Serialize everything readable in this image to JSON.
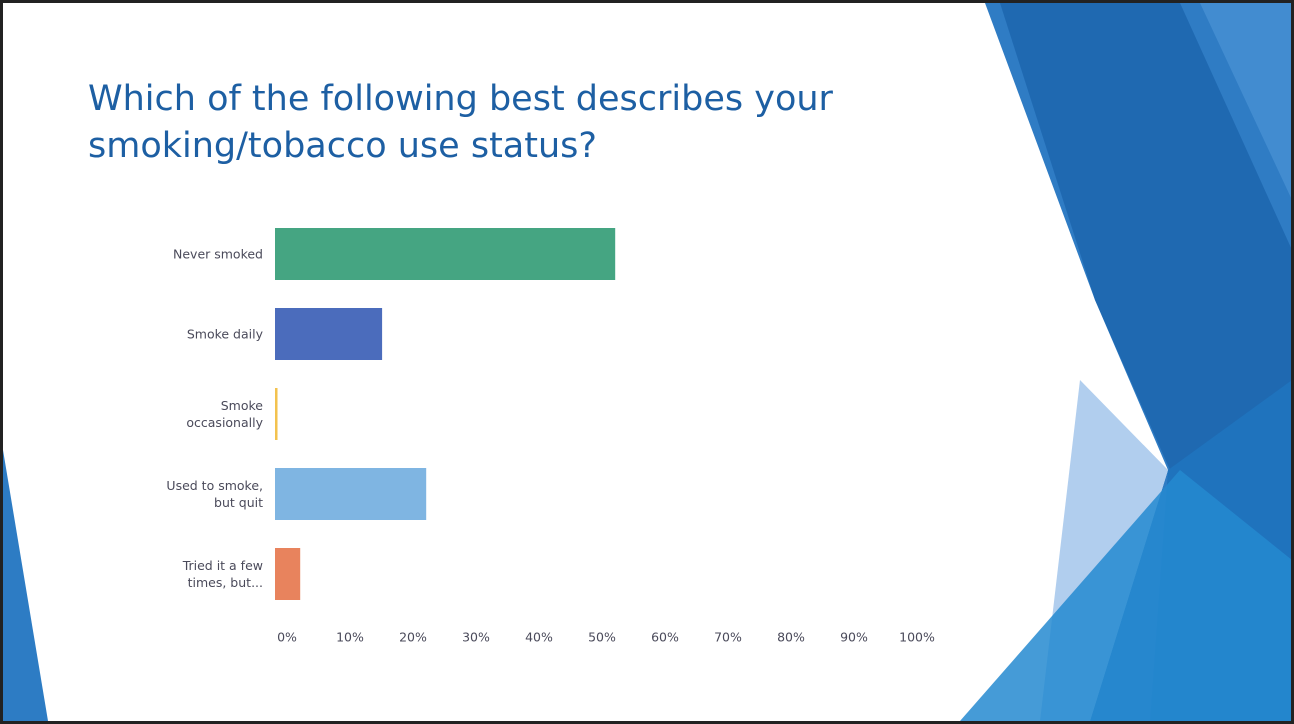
{
  "chart_data": {
    "type": "barh",
    "title": "Which of the following best describes your smoking/tobacco use status?",
    "categories": [
      "Never smoked",
      "Smoke daily",
      "Smoke occasionally",
      "Used to smoke, but quit",
      "Tried it a few times, but..."
    ],
    "values": [
      54,
      17,
      0.4,
      24,
      4
    ],
    "colors": [
      "#45a582",
      "#4b6cbc",
      "#f3c24f",
      "#7fb5e2",
      "#e8835d"
    ],
    "xlim": [
      0,
      100
    ],
    "xticks": [
      {
        "value": 0,
        "label": "0%"
      },
      {
        "value": 10,
        "label": "10%"
      },
      {
        "value": 20,
        "label": "20%"
      },
      {
        "value": 30,
        "label": "30%"
      },
      {
        "value": 40,
        "label": "40%"
      },
      {
        "value": 50,
        "label": "50%"
      },
      {
        "value": 60,
        "label": "60%"
      },
      {
        "value": 70,
        "label": "70%"
      },
      {
        "value": 80,
        "label": "80%"
      },
      {
        "value": 90,
        "label": "90%"
      },
      {
        "value": 100,
        "label": "100%"
      }
    ],
    "grid": false
  }
}
